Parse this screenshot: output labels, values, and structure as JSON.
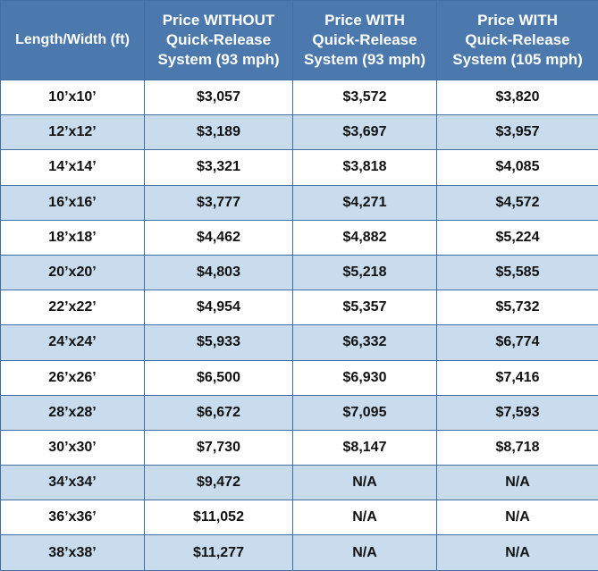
{
  "table": {
    "headers": [
      [
        "Length/Width (ft)"
      ],
      [
        "Price WITHOUT",
        "Quick-Release",
        "System (93 mph)"
      ],
      [
        "Price WITH",
        "Quick-Release",
        "System (93 mph)"
      ],
      [
        "Price WITH",
        "Quick-Release",
        "System (105 mph)"
      ]
    ],
    "rows": [
      [
        "10’x10’",
        "$3,057",
        "$3,572",
        "$3,820"
      ],
      [
        "12’x12’",
        "$3,189",
        "$3,697",
        "$3,957"
      ],
      [
        "14’x14’",
        "$3,321",
        "$3,818",
        "$4,085"
      ],
      [
        "16’x16’",
        "$3,777",
        "$4,271",
        "$4,572"
      ],
      [
        "18’x18’",
        "$4,462",
        "$4,882",
        "$5,224"
      ],
      [
        "20’x20’",
        "$4,803",
        "$5,218",
        "$5,585"
      ],
      [
        "22’x22’",
        "$4,954",
        "$5,357",
        "$5,732"
      ],
      [
        "24’x24’",
        "$5,933",
        "$6,332",
        "$6,774"
      ],
      [
        "26’x26’",
        "$6,500",
        "$6,930",
        "$7,416"
      ],
      [
        "28’x28’",
        "$6,672",
        "$7,095",
        "$7,593"
      ],
      [
        "30’x30’",
        "$7,730",
        "$8,147",
        "$8,718"
      ],
      [
        "34’x34’",
        "$9,472",
        "N/A",
        "N/A"
      ],
      [
        "36’x36’",
        "$11,052",
        "N/A",
        "N/A"
      ],
      [
        "38’x38’",
        "$11,277",
        "N/A",
        "N/A"
      ]
    ]
  },
  "colors": {
    "header_bg": "#4b79ae",
    "header_text": "#ffffff",
    "row_alt_bg": "#c8dced",
    "border": "#3f6ea0"
  }
}
